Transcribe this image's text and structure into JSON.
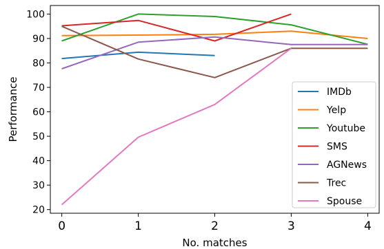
{
  "chart_data": {
    "type": "line",
    "xlabel": "No. matches",
    "ylabel": "Performance",
    "x": [
      0,
      1,
      2,
      3,
      4
    ],
    "xlim": [
      -0.15,
      4.15
    ],
    "ylim": [
      18.5,
      103.5
    ],
    "xticks": [
      0,
      1,
      2,
      3,
      4
    ],
    "yticks": [
      20,
      30,
      40,
      50,
      60,
      70,
      80,
      90,
      100
    ],
    "grid": false,
    "legend_position": "lower right",
    "series": [
      {
        "name": "IMDb",
        "color": "#1f77b4",
        "x": [
          0,
          1,
          2
        ],
        "values": [
          81.8,
          84.4,
          83.0
        ]
      },
      {
        "name": "Yelp",
        "color": "#ff7f0e",
        "x": [
          0,
          1,
          2,
          3,
          4
        ],
        "values": [
          91.2,
          91.4,
          91.7,
          93.0,
          90.0
        ]
      },
      {
        "name": "Youtube",
        "color": "#2ca02c",
        "x": [
          0,
          1,
          2,
          3,
          4
        ],
        "values": [
          89.0,
          100.0,
          99.0,
          95.6,
          87.6
        ]
      },
      {
        "name": "SMS",
        "color": "#d62728",
        "x": [
          0,
          1,
          2,
          3
        ],
        "values": [
          95.2,
          97.4,
          89.0,
          100.0
        ]
      },
      {
        "name": "AGNews",
        "color": "#9467bd",
        "x": [
          0,
          1,
          2,
          3,
          4
        ],
        "values": [
          77.6,
          88.5,
          90.6,
          87.5,
          87.5
        ]
      },
      {
        "name": "Trec",
        "color": "#8c564b",
        "x": [
          0,
          1,
          2,
          3,
          4
        ],
        "values": [
          95.0,
          81.6,
          74.0,
          86.0,
          86.0
        ]
      },
      {
        "name": "Spouse",
        "color": "#e377c2",
        "x": [
          0,
          1,
          2,
          3
        ],
        "values": [
          22.0,
          49.6,
          63.0,
          86.0
        ]
      }
    ]
  }
}
